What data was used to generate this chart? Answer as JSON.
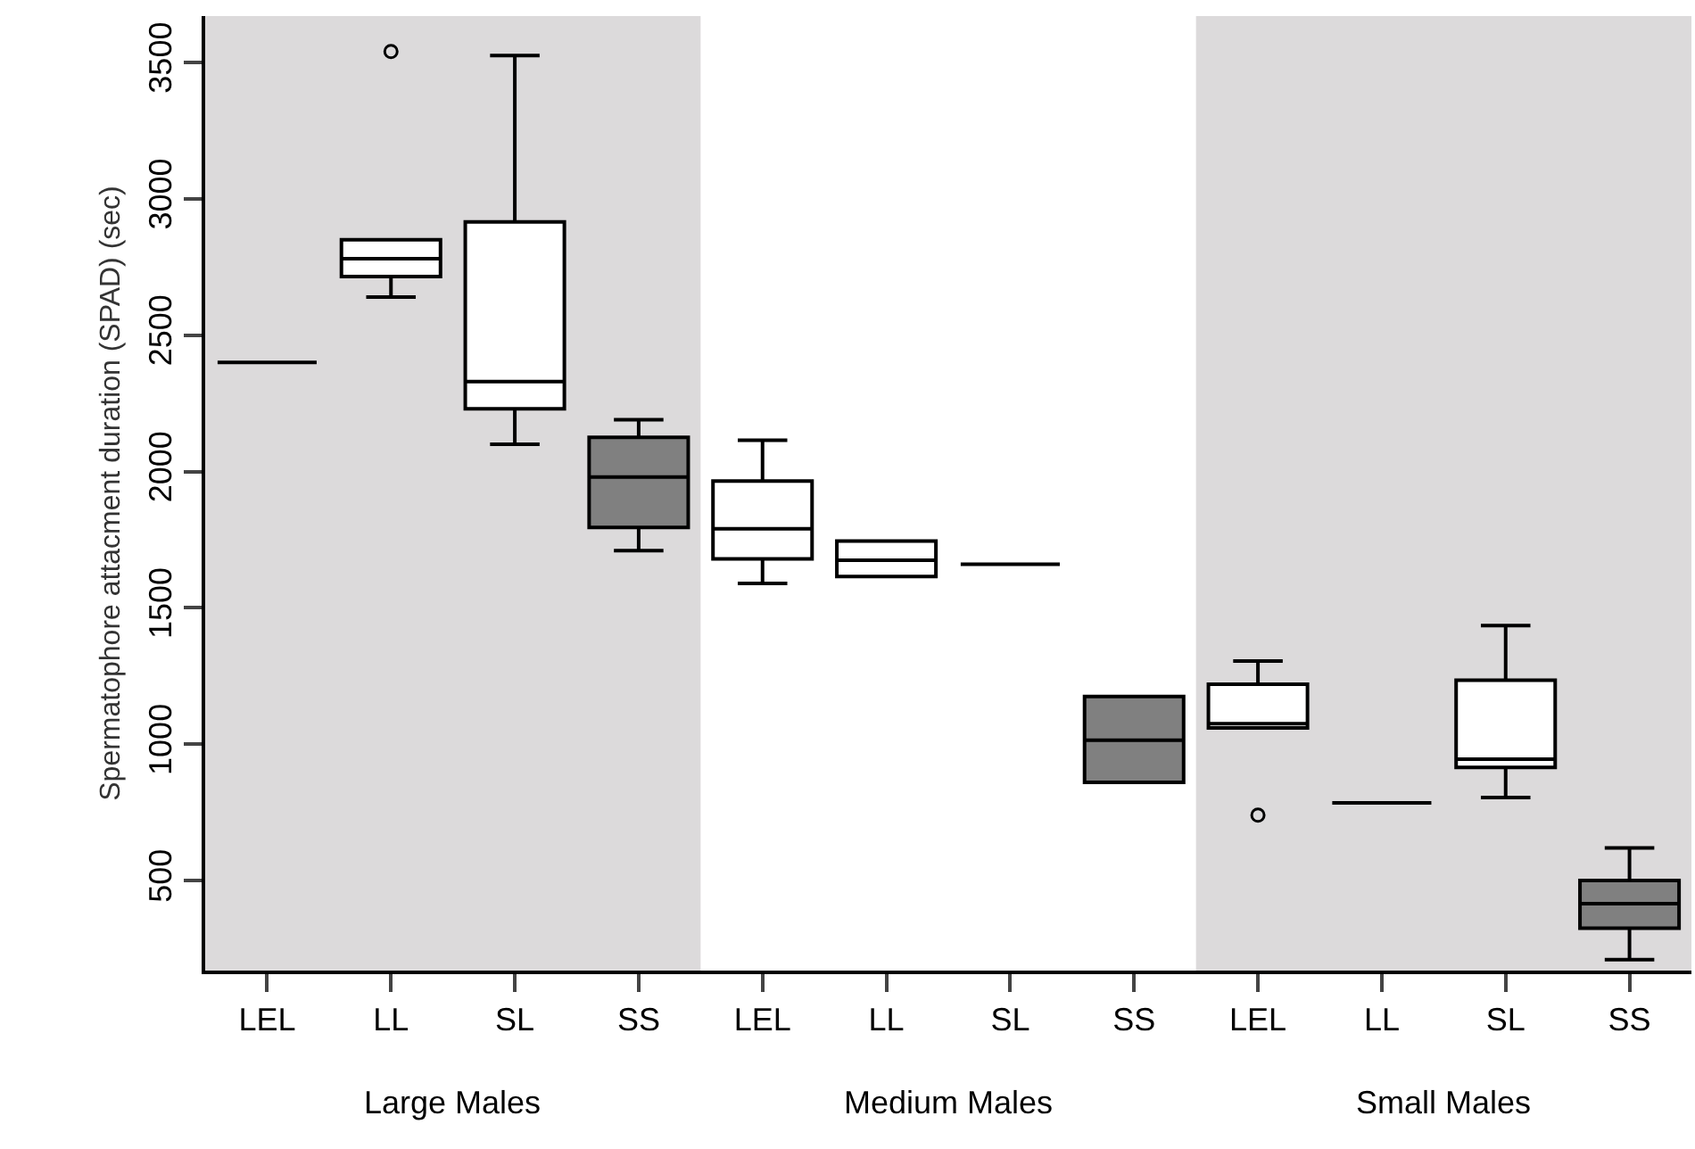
{
  "chart_data": {
    "type": "box",
    "ylabel": "Spermatophore attacment duration (SPAD) (sec)",
    "categories": [
      "LEL",
      "LL",
      "SL",
      "SS",
      "LEL",
      "LL",
      "SL",
      "SS",
      "LEL",
      "LL",
      "SL",
      "SS"
    ],
    "colors": [
      "#000000",
      "#ffffff",
      "#ffffff",
      "#808080",
      "#ffffff",
      "#ffffff",
      "#000000",
      "#808080",
      "#ffffff",
      "#000000",
      "#ffffff",
      "#808080"
    ],
    "boxes": [
      {
        "low": 2400,
        "q1": 2400,
        "median": 2400,
        "q3": 2400,
        "high": 2400
      },
      {
        "low": 2640,
        "q1": 2715,
        "median": 2780,
        "q3": 2850,
        "high": 2850,
        "outliers": [
          3540
        ]
      },
      {
        "low": 2100,
        "q1": 2230,
        "median": 2330,
        "q3": 2915,
        "high": 3525
      },
      {
        "low": 1710,
        "q1": 1795,
        "median": 1980,
        "q3": 2125,
        "high": 2190
      },
      {
        "low": 1590,
        "q1": 1680,
        "median": 1790,
        "q3": 1965,
        "high": 2115
      },
      {
        "low": 1615,
        "q1": 1615,
        "median": 1675,
        "q3": 1745,
        "high": 1745
      },
      {
        "low": 1660,
        "q1": 1660,
        "median": 1660,
        "q3": 1660,
        "high": 1660
      },
      {
        "low": 860,
        "q1": 860,
        "median": 1015,
        "q3": 1175,
        "high": 1175
      },
      {
        "low": 1060,
        "q1": 1060,
        "median": 1075,
        "q3": 1220,
        "high": 1305,
        "outliers": [
          740
        ]
      },
      {
        "low": 785,
        "q1": 785,
        "median": 785,
        "q3": 785,
        "high": 785
      },
      {
        "low": 805,
        "q1": 915,
        "median": 945,
        "q3": 1235,
        "high": 1435
      },
      {
        "low": 210,
        "q1": 325,
        "median": 415,
        "q3": 500,
        "high": 620
      }
    ],
    "ylim": [
      170,
      3670
    ],
    "yticks": [
      500,
      1000,
      1500,
      2000,
      2500,
      3000,
      3500
    ],
    "annotations": [
      "Large Males",
      "Medium Males",
      "Small Males"
    ]
  }
}
